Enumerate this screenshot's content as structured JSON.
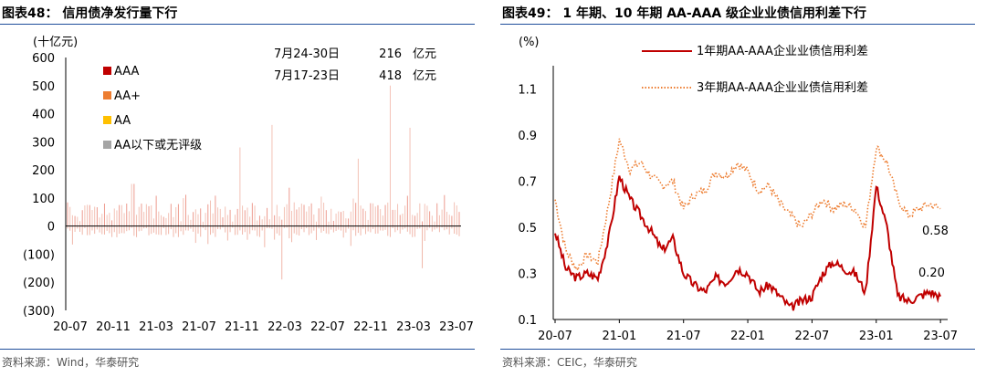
{
  "left": {
    "title": "图表48： 信用债净发行量下行",
    "unit_label": "(十亿元)",
    "source": "资料来源：Wind，华泰研究",
    "legend": [
      {
        "label": "AAA",
        "color": "#c00000"
      },
      {
        "label": "AA+",
        "color": "#ed7d31"
      },
      {
        "label": "AA",
        "color": "#ffc000"
      },
      {
        "label": "AA以下或无评级",
        "color": "#a5a5a5"
      }
    ],
    "annotations": [
      {
        "period": "7月24-30日",
        "value": "216",
        "unit": "亿元"
      },
      {
        "period": "7月17-23日",
        "value": "418",
        "unit": "亿元"
      }
    ]
  },
  "right": {
    "title": "图表49： 1 年期、10 年期 AA-AAA 级企业业债信用利差下行",
    "unit_label": "(%)",
    "source": "资料来源：CEIC，华泰研究",
    "legend": [
      {
        "label": "1年期AA-AAA企业业债信用利差",
        "color": "#c00000",
        "style": "solid"
      },
      {
        "label": "3年期AA-AAA企业业债信用利差",
        "color": "#ed7d31",
        "style": "dotted"
      }
    ],
    "end_labels": [
      {
        "text": "0.58",
        "color": "#ed7d31"
      },
      {
        "text": "0.20",
        "color": "#c00000"
      }
    ]
  },
  "chart_data": [
    {
      "type": "bar",
      "title": "信用债净发行量下行",
      "ylabel": "(十亿元)",
      "ylim": [
        -300,
        600
      ],
      "yticks": [
        "600",
        "500",
        "400",
        "300",
        "200",
        "100",
        "0",
        "(100)",
        "(200)",
        "(300)"
      ],
      "xticks": [
        "20-07",
        "20-11",
        "21-03",
        "21-07",
        "21-11",
        "22-03",
        "22-07",
        "22-11",
        "23-03",
        "23-07"
      ],
      "series": [
        {
          "name": "AAA",
          "color": "#c00000",
          "peaks": [
            {
              "x": "21-01",
              "value": 150
            },
            {
              "x": "21-11",
              "value": 280
            },
            {
              "x": "22-02",
              "value": 360
            },
            {
              "x": "22-03",
              "value": -190
            },
            {
              "x": "22-10",
              "value": 240
            },
            {
              "x": "23-01",
              "value": 500
            },
            {
              "x": "23-03",
              "value": 350
            },
            {
              "x": "23-04",
              "value": -150
            }
          ]
        },
        {
          "name": "AA+",
          "color": "#ed7d31",
          "peaks": []
        },
        {
          "name": "AA",
          "color": "#ffc000",
          "peaks": []
        },
        {
          "name": "AA以下或无评级",
          "color": "#a5a5a5",
          "peaks": []
        }
      ]
    },
    {
      "type": "line",
      "title": "1 年期、10 年期 AA-AAA 级企业业债信用利差下行",
      "ylabel": "(%)",
      "ylim": [
        0.1,
        1.2
      ],
      "yticks": [
        "1.1",
        "0.9",
        "0.7",
        "0.5",
        "0.3",
        "0.1"
      ],
      "xticks": [
        "20-07",
        "21-01",
        "21-07",
        "22-01",
        "22-07",
        "23-01",
        "23-07"
      ],
      "series": [
        {
          "name": "1年期AA-AAA企业业债信用利差",
          "color": "#c00000",
          "x": [
            "20-07",
            "20-08",
            "20-09",
            "20-10",
            "20-11",
            "20-12",
            "21-01",
            "21-02",
            "21-03",
            "21-04",
            "21-05",
            "21-06",
            "21-07",
            "21-08",
            "21-09",
            "21-10",
            "21-11",
            "21-12",
            "22-01",
            "22-02",
            "22-03",
            "22-04",
            "22-05",
            "22-06",
            "22-07",
            "22-08",
            "22-09",
            "22-10",
            "22-11",
            "22-12",
            "23-01",
            "23-02",
            "23-03",
            "23-04",
            "23-05",
            "23-06",
            "23-07"
          ],
          "values": [
            0.48,
            0.32,
            0.28,
            0.3,
            0.28,
            0.45,
            0.72,
            0.62,
            0.55,
            0.48,
            0.4,
            0.45,
            0.3,
            0.25,
            0.22,
            0.28,
            0.26,
            0.32,
            0.3,
            0.22,
            0.25,
            0.2,
            0.15,
            0.18,
            0.2,
            0.3,
            0.35,
            0.32,
            0.3,
            0.22,
            0.68,
            0.5,
            0.2,
            0.18,
            0.2,
            0.22,
            0.2
          ]
        },
        {
          "name": "3年期AA-AAA企业业债信用利差",
          "color": "#ed7d31",
          "x": [
            "20-07",
            "20-08",
            "20-09",
            "20-10",
            "20-11",
            "20-12",
            "21-01",
            "21-02",
            "21-03",
            "21-04",
            "21-05",
            "21-06",
            "21-07",
            "21-08",
            "21-09",
            "21-10",
            "21-11",
            "21-12",
            "22-01",
            "22-02",
            "22-03",
            "22-04",
            "22-05",
            "22-06",
            "22-07",
            "22-08",
            "22-09",
            "22-10",
            "22-11",
            "22-12",
            "23-01",
            "23-02",
            "23-03",
            "23-04",
            "23-05",
            "23-06",
            "23-07"
          ],
          "values": [
            0.62,
            0.4,
            0.32,
            0.38,
            0.35,
            0.6,
            0.88,
            0.75,
            0.78,
            0.72,
            0.68,
            0.7,
            0.58,
            0.64,
            0.66,
            0.74,
            0.72,
            0.78,
            0.74,
            0.66,
            0.68,
            0.6,
            0.55,
            0.5,
            0.56,
            0.62,
            0.58,
            0.6,
            0.58,
            0.5,
            0.85,
            0.78,
            0.62,
            0.55,
            0.58,
            0.6,
            0.58
          ]
        }
      ]
    }
  ]
}
